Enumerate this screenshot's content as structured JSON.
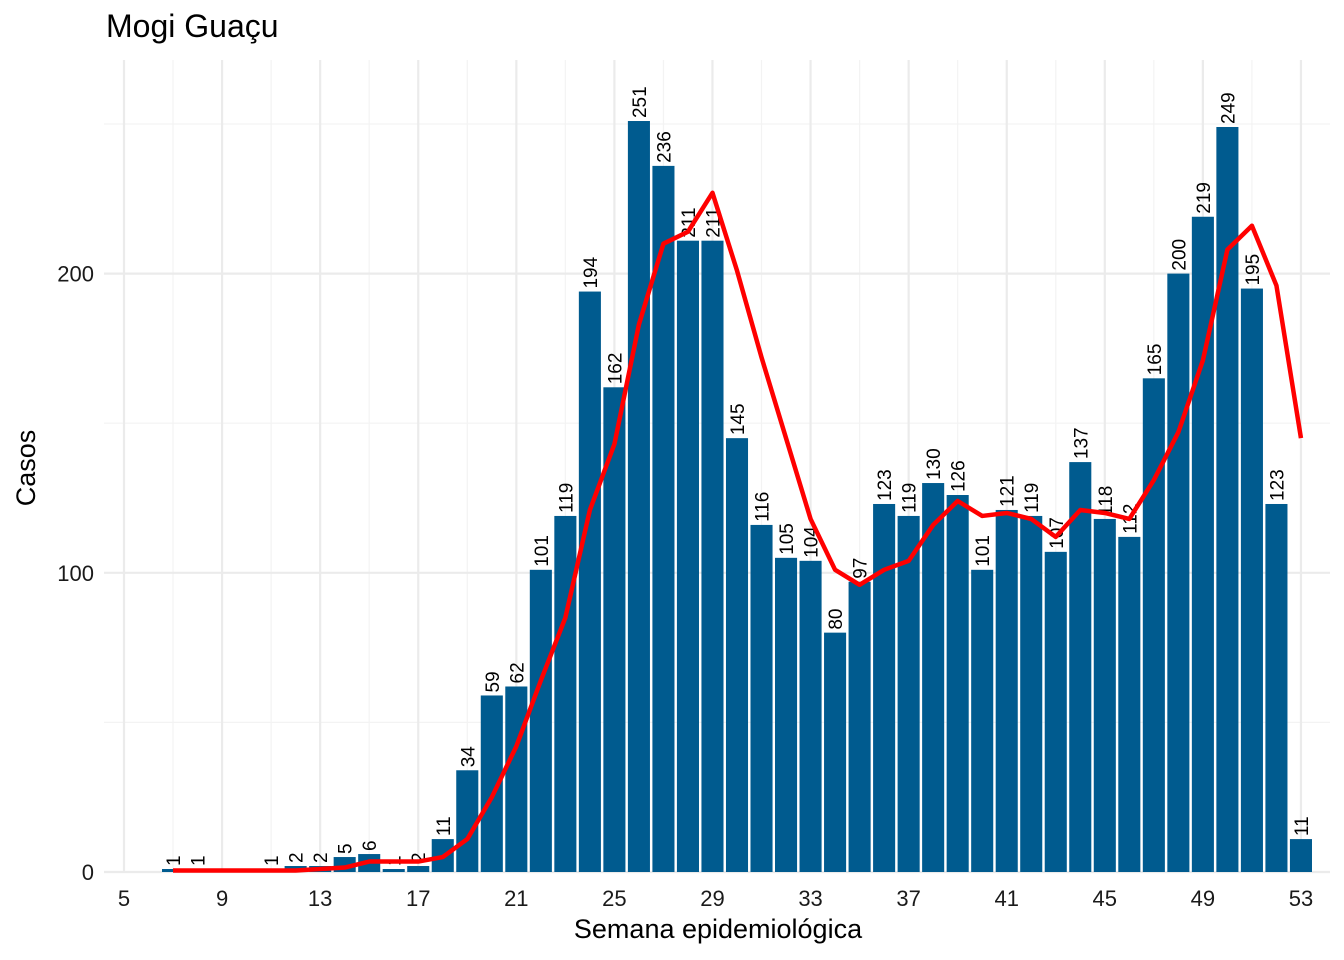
{
  "chart_data": {
    "type": "bar",
    "title": "Mogi Guaçu",
    "xlabel": "Semana epidemiológica",
    "ylabel": "Casos",
    "xlim": [
      5,
      55
    ],
    "ylim": [
      0,
      250
    ],
    "x_ticks": [
      5,
      9,
      13,
      17,
      21,
      25,
      29,
      33,
      37,
      41,
      45,
      49,
      53
    ],
    "y_ticks": [
      0,
      100,
      200
    ],
    "grid": true,
    "bar_color": "#005b8f",
    "line_color": "#ff0000",
    "series": [
      {
        "type": "bar",
        "x": [
          7,
          8,
          11,
          12,
          13,
          14,
          15,
          16,
          17,
          18,
          19,
          20,
          21,
          22,
          23,
          24,
          25,
          26,
          27,
          28,
          29,
          30,
          31,
          32,
          33,
          34,
          35,
          36,
          37,
          38,
          39,
          40,
          41,
          42,
          43,
          44,
          45,
          46,
          47,
          48,
          49,
          50,
          51,
          52,
          53
        ],
        "values": [
          1,
          1,
          1,
          2,
          2,
          5,
          6,
          1,
          2,
          11,
          34,
          59,
          62,
          101,
          119,
          194,
          162,
          251,
          236,
          211,
          211,
          145,
          116,
          105,
          104,
          80,
          97,
          123,
          119,
          130,
          126,
          101,
          121,
          119,
          107,
          137,
          118,
          112,
          165,
          200,
          219,
          249,
          195,
          123,
          11
        ],
        "labels": [
          "1",
          "1",
          "1",
          "2",
          "2",
          "5",
          "6",
          "1",
          "2",
          "11",
          "34",
          "59",
          "62",
          "101",
          "119",
          "194",
          "162",
          "251",
          "236",
          "211",
          "211",
          "145",
          "116",
          "105",
          "104",
          "80",
          "97",
          "123",
          "119",
          "130",
          "126",
          "101",
          "121",
          "119",
          "107",
          "137",
          "118",
          "112",
          "165",
          "200",
          "219",
          "249",
          "195",
          "123",
          "11"
        ]
      },
      {
        "type": "line",
        "x": [
          7,
          8,
          9,
          10,
          11,
          12,
          13,
          14,
          15,
          16,
          17,
          18,
          19,
          20,
          21,
          22,
          23,
          24,
          25,
          26,
          27,
          28,
          29,
          30,
          31,
          32,
          33,
          34,
          35,
          36,
          37,
          38,
          39,
          40,
          41,
          42,
          43,
          44,
          45,
          46,
          47,
          48,
          49,
          50,
          51,
          52,
          53
        ],
        "values": [
          0.5,
          0.5,
          0.5,
          0.5,
          0.5,
          0.5,
          1,
          1.5,
          3.5,
          3.5,
          3.5,
          5,
          11,
          25,
          42,
          64,
          85,
          121,
          143,
          183,
          210,
          214,
          227,
          201,
          172,
          145,
          118,
          101,
          96,
          101,
          104,
          116,
          124,
          119,
          120,
          118,
          112,
          121,
          120,
          118,
          131,
          147,
          171,
          208,
          216,
          196,
          145
        ]
      }
    ]
  }
}
